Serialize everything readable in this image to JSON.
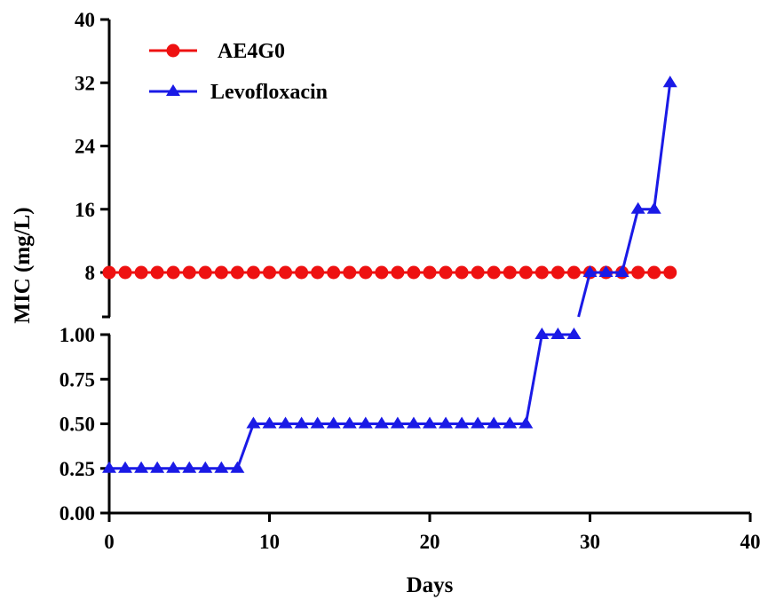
{
  "chart_data": {
    "type": "line",
    "title": "",
    "xlabel": "Days",
    "ylabel": "MIC (mg/L)",
    "xlim": [
      0,
      40
    ],
    "x_ticks": [
      "0",
      "10",
      "20",
      "30",
      "40"
    ],
    "y_axis_break": true,
    "y_lower_range": [
      0,
      1
    ],
    "y_upper_range": [
      8,
      40
    ],
    "y_ticks_lower": [
      "0.00",
      "0.25",
      "0.50",
      "0.75",
      "1.00"
    ],
    "y_ticks_upper": [
      "8",
      "16",
      "24",
      "32",
      "40"
    ],
    "grid": false,
    "legend_position": "top-left",
    "series": [
      {
        "name": "AE4G0",
        "color": "#ee1111",
        "marker": "circle",
        "x": [
          0,
          1,
          2,
          3,
          4,
          5,
          6,
          7,
          8,
          9,
          10,
          11,
          12,
          13,
          14,
          15,
          16,
          17,
          18,
          19,
          20,
          21,
          22,
          23,
          24,
          25,
          26,
          27,
          28,
          29,
          30,
          31,
          32,
          33,
          34,
          35
        ],
        "y": [
          8,
          8,
          8,
          8,
          8,
          8,
          8,
          8,
          8,
          8,
          8,
          8,
          8,
          8,
          8,
          8,
          8,
          8,
          8,
          8,
          8,
          8,
          8,
          8,
          8,
          8,
          8,
          8,
          8,
          8,
          8,
          8,
          8,
          8,
          8,
          8
        ]
      },
      {
        "name": "Levofloxacin",
        "color": "#1a1ae6",
        "marker": "triangle",
        "x": [
          0,
          1,
          2,
          3,
          4,
          5,
          6,
          7,
          8,
          9,
          10,
          11,
          12,
          13,
          14,
          15,
          16,
          17,
          18,
          19,
          20,
          21,
          22,
          23,
          24,
          25,
          26,
          27,
          28,
          29,
          30,
          31,
          32,
          33,
          34,
          35
        ],
        "y": [
          0.25,
          0.25,
          0.25,
          0.25,
          0.25,
          0.25,
          0.25,
          0.25,
          0.25,
          0.5,
          0.5,
          0.5,
          0.5,
          0.5,
          0.5,
          0.5,
          0.5,
          0.5,
          0.5,
          0.5,
          0.5,
          0.5,
          0.5,
          0.5,
          0.5,
          0.5,
          0.5,
          1,
          1,
          1,
          8,
          8,
          8,
          16,
          16,
          32
        ]
      }
    ]
  }
}
